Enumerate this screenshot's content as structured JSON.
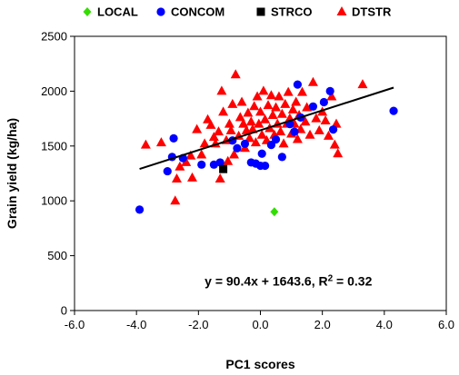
{
  "chart_data": {
    "type": "scatter",
    "xlabel": "PC1 scores",
    "ylabel": "Grain yield (kg/ha)",
    "xlim": [
      -6.0,
      6.0
    ],
    "ylim": [
      0,
      2500
    ],
    "x_ticks": [
      "-6.0",
      "-4.0",
      "-2.0",
      "0.0",
      "2.0",
      "4.0",
      "6.0"
    ],
    "y_ticks": [
      "0",
      "500",
      "1000",
      "1500",
      "2000",
      "2500"
    ],
    "x_tick_values": [
      -6,
      -4,
      -2,
      0,
      2,
      4,
      6
    ],
    "y_tick_values": [
      0,
      500,
      1000,
      1500,
      2000,
      2500
    ],
    "grid": "none",
    "legend_position": "top",
    "series": [
      {
        "name": "LOCAL",
        "marker": "diamond",
        "color": "#33dd00",
        "points": [
          [
            0.45,
            900
          ]
        ]
      },
      {
        "name": "CONCOM",
        "marker": "circle",
        "color": "#0000ff",
        "points": [
          [
            -3.9,
            920
          ],
          [
            -3.0,
            1270
          ],
          [
            -2.85,
            1400
          ],
          [
            -2.8,
            1570
          ],
          [
            -2.5,
            1390
          ],
          [
            -1.9,
            1330
          ],
          [
            -1.5,
            1330
          ],
          [
            -1.3,
            1350
          ],
          [
            -0.9,
            1550
          ],
          [
            -0.75,
            1480
          ],
          [
            -0.5,
            1520
          ],
          [
            -0.3,
            1350
          ],
          [
            -0.15,
            1340
          ],
          [
            0.0,
            1320
          ],
          [
            0.05,
            1430
          ],
          [
            0.15,
            1320
          ],
          [
            0.35,
            1510
          ],
          [
            0.5,
            1560
          ],
          [
            0.7,
            1400
          ],
          [
            0.95,
            1700
          ],
          [
            1.1,
            1630
          ],
          [
            1.2,
            2060
          ],
          [
            1.3,
            1760
          ],
          [
            1.7,
            1860
          ],
          [
            2.05,
            1900
          ],
          [
            2.25,
            2000
          ],
          [
            2.35,
            1650
          ],
          [
            4.3,
            1820
          ]
        ]
      },
      {
        "name": "STRCO",
        "marker": "square",
        "color": "#000000",
        "points": [
          [
            -1.2,
            1290
          ]
        ]
      },
      {
        "name": "DTSTR",
        "marker": "triangle",
        "color": "#ff0000",
        "points": [
          [
            -3.7,
            1510
          ],
          [
            -3.2,
            1530
          ],
          [
            -2.75,
            1000
          ],
          [
            -2.7,
            1200
          ],
          [
            -2.6,
            1310
          ],
          [
            -2.4,
            1350
          ],
          [
            -2.25,
            1410
          ],
          [
            -2.2,
            1210
          ],
          [
            -2.05,
            1650
          ],
          [
            -1.9,
            1420
          ],
          [
            -1.8,
            1520
          ],
          [
            -1.7,
            1740
          ],
          [
            -1.6,
            1690
          ],
          [
            -1.5,
            1580
          ],
          [
            -1.45,
            1520
          ],
          [
            -1.35,
            1630
          ],
          [
            -1.3,
            1200
          ],
          [
            -1.25,
            2000
          ],
          [
            -1.2,
            1810
          ],
          [
            -1.1,
            1550
          ],
          [
            -1.05,
            1360
          ],
          [
            -1.0,
            1700
          ],
          [
            -0.95,
            1640
          ],
          [
            -0.9,
            1880
          ],
          [
            -0.85,
            1420
          ],
          [
            -0.8,
            2150
          ],
          [
            -0.7,
            1590
          ],
          [
            -0.65,
            1760
          ],
          [
            -0.6,
            1900
          ],
          [
            -0.55,
            1700
          ],
          [
            -0.5,
            1480
          ],
          [
            -0.45,
            1640
          ],
          [
            -0.4,
            1800
          ],
          [
            -0.35,
            1570
          ],
          [
            -0.3,
            1720
          ],
          [
            -0.25,
            1650
          ],
          [
            -0.2,
            1860
          ],
          [
            -0.15,
            1530
          ],
          [
            -0.1,
            1950
          ],
          [
            -0.05,
            1700
          ],
          [
            0.0,
            1810
          ],
          [
            0.05,
            1600
          ],
          [
            0.1,
            2000
          ],
          [
            0.15,
            1740
          ],
          [
            0.2,
            1550
          ],
          [
            0.25,
            1870
          ],
          [
            0.3,
            1660
          ],
          [
            0.35,
            1960
          ],
          [
            0.4,
            1780
          ],
          [
            0.45,
            1600
          ],
          [
            0.5,
            1850
          ],
          [
            0.55,
            1700
          ],
          [
            0.6,
            1950
          ],
          [
            0.65,
            1630
          ],
          [
            0.7,
            1790
          ],
          [
            0.75,
            1520
          ],
          [
            0.8,
            1880
          ],
          [
            0.85,
            1700
          ],
          [
            0.9,
            1990
          ],
          [
            0.95,
            1750
          ],
          [
            1.0,
            1610
          ],
          [
            1.05,
            1830
          ],
          [
            1.1,
            1700
          ],
          [
            1.15,
            1900
          ],
          [
            1.2,
            1560
          ],
          [
            1.25,
            1780
          ],
          [
            1.3,
            1650
          ],
          [
            1.35,
            1990
          ],
          [
            1.45,
            1720
          ],
          [
            1.5,
            1850
          ],
          [
            1.6,
            1600
          ],
          [
            1.7,
            2080
          ],
          [
            1.8,
            1750
          ],
          [
            1.9,
            1640
          ],
          [
            2.0,
            1810
          ],
          [
            2.1,
            1730
          ],
          [
            2.2,
            1590
          ],
          [
            2.3,
            1950
          ],
          [
            2.4,
            1510
          ],
          [
            2.45,
            1700
          ],
          [
            2.5,
            1430
          ],
          [
            3.3,
            2060
          ]
        ]
      }
    ],
    "trendline": {
      "x_range": [
        -3.9,
        4.3
      ],
      "slope": 90.4,
      "intercept": 1643.6,
      "color": "#000000"
    },
    "annotation": {
      "equation": "y = 90.4x + 1643.6, R",
      "superscript": "2",
      "suffix": " = 0.32",
      "x": -1.8,
      "y": 270
    }
  }
}
